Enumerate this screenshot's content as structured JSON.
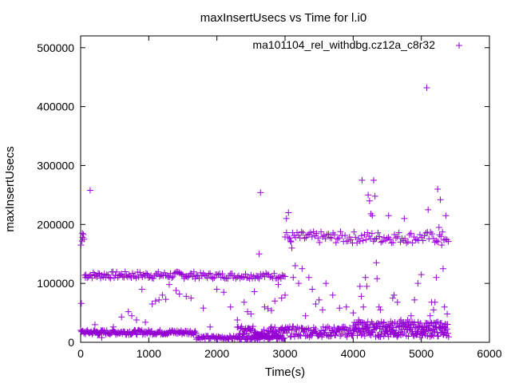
{
  "chart_data": {
    "type": "scatter",
    "title": "maxInsertUsecs vs Time for l.i0",
    "xlabel": "Time(s)",
    "ylabel": "maxInsertUsecs",
    "xlim": [
      0,
      6000
    ],
    "ylim": [
      0,
      520000
    ],
    "x_ticks": [
      0,
      1000,
      2000,
      3000,
      4000,
      5000,
      6000
    ],
    "y_ticks": [
      0,
      100000,
      200000,
      300000,
      400000,
      500000
    ],
    "grid": false,
    "legend_position": "top-right",
    "marker": "+",
    "color": "#9400d3",
    "series": [
      {
        "name": "ma101104_rel_withdbg.cz12a_c8r32",
        "points": [
          [
            5,
            165000
          ],
          [
            10,
            66000
          ],
          [
            20,
            172000
          ],
          [
            25,
            185000
          ],
          [
            30,
            178000
          ],
          [
            40,
            183000
          ],
          [
            50,
            175000
          ],
          [
            70,
            110000
          ],
          [
            140,
            258000
          ],
          [
            210,
            30000
          ],
          [
            250,
            12000
          ],
          [
            310,
            8000
          ],
          [
            480,
            26000
          ],
          [
            600,
            43000
          ],
          [
            700,
            52000
          ],
          [
            750,
            45000
          ],
          [
            820,
            38000
          ],
          [
            900,
            90000
          ],
          [
            950,
            34000
          ],
          [
            1050,
            65000
          ],
          [
            1100,
            70000
          ],
          [
            1150,
            72000
          ],
          [
            1200,
            80000
          ],
          [
            1250,
            73000
          ],
          [
            1300,
            98000
          ],
          [
            1400,
            88000
          ],
          [
            1450,
            82000
          ],
          [
            1550,
            78000
          ],
          [
            1620,
            75000
          ],
          [
            1800,
            58000
          ],
          [
            1900,
            26000
          ],
          [
            2000,
            90000
          ],
          [
            2100,
            85000
          ],
          [
            2200,
            60000
          ],
          [
            2300,
            38000
          ],
          [
            2400,
            68000
          ],
          [
            2450,
            52000
          ],
          [
            2500,
            48000
          ],
          [
            2550,
            86000
          ],
          [
            2600,
            110000
          ],
          [
            2620,
            150000
          ],
          [
            2640,
            254000
          ],
          [
            2700,
            60000
          ],
          [
            2750,
            57000
          ],
          [
            2800,
            54000
          ],
          [
            2850,
            70000
          ],
          [
            2900,
            98000
          ],
          [
            2950,
            75000
          ],
          [
            3000,
            80000
          ],
          [
            3020,
            210000
          ],
          [
            3050,
            220000
          ],
          [
            3080,
            172000
          ],
          [
            3100,
            160000
          ],
          [
            3120,
            110000
          ],
          [
            3150,
            130000
          ],
          [
            3200,
            100000
          ],
          [
            3250,
            125000
          ],
          [
            3300,
            45000
          ],
          [
            3350,
            110000
          ],
          [
            3400,
            90000
          ],
          [
            3450,
            65000
          ],
          [
            3500,
            72000
          ],
          [
            3550,
            55000
          ],
          [
            3600,
            100000
          ],
          [
            3700,
            80000
          ],
          [
            3800,
            58000
          ],
          [
            3900,
            60000
          ],
          [
            4000,
            50000
          ],
          [
            4080,
            38000
          ],
          [
            4100,
            95000
          ],
          [
            4120,
            78000
          ],
          [
            4130,
            275000
          ],
          [
            4150,
            60000
          ],
          [
            4180,
            110000
          ],
          [
            4200,
            95000
          ],
          [
            4220,
            250000
          ],
          [
            4240,
            240000
          ],
          [
            4260,
            218000
          ],
          [
            4280,
            215000
          ],
          [
            4300,
            275000
          ],
          [
            4320,
            248000
          ],
          [
            4340,
            135000
          ],
          [
            4350,
            108000
          ],
          [
            4380,
            60000
          ],
          [
            4400,
            55000
          ],
          [
            4450,
            33000
          ],
          [
            4500,
            25000
          ],
          [
            4520,
            215000
          ],
          [
            4550,
            35000
          ],
          [
            4580,
            75000
          ],
          [
            4600,
            80000
          ],
          [
            4650,
            68000
          ],
          [
            4700,
            38000
          ],
          [
            4750,
            210000
          ],
          [
            4800,
            38000
          ],
          [
            4850,
            45000
          ],
          [
            4900,
            72000
          ],
          [
            4950,
            100000
          ],
          [
            5000,
            115000
          ],
          [
            5020,
            22000
          ],
          [
            5050,
            15000
          ],
          [
            5080,
            432000
          ],
          [
            5100,
            225000
          ],
          [
            5130,
            45000
          ],
          [
            5150,
            68000
          ],
          [
            5180,
            55000
          ],
          [
            5200,
            68000
          ],
          [
            5220,
            110000
          ],
          [
            5240,
            260000
          ],
          [
            5260,
            195000
          ],
          [
            5280,
            242000
          ],
          [
            5300,
            165000
          ],
          [
            5320,
            125000
          ],
          [
            5340,
            60000
          ],
          [
            5360,
            215000
          ],
          [
            5380,
            48000
          ]
        ],
        "bands": [
          {
            "x": [
              60,
              1700
            ],
            "y_center": 114000,
            "y_jitter": 6000,
            "step": 18
          },
          {
            "x": [
              1700,
              3000
            ],
            "y_center": 113000,
            "y_jitter": 5000,
            "step": 20
          },
          {
            "x": [
              3000,
              5400
            ],
            "y_center": 178000,
            "y_jitter": 10000,
            "step": 22
          },
          {
            "x": [
              0,
              1700
            ],
            "y_center": 17000,
            "y_jitter": 4000,
            "step": 12
          },
          {
            "x": [
              1700,
              3000
            ],
            "y_center": 8000,
            "y_jitter": 3000,
            "step": 14
          },
          {
            "x": [
              2300,
              5400
            ],
            "y_center": 18000,
            "y_jitter": 9000,
            "step": 10
          },
          {
            "x": [
              4000,
              5400
            ],
            "y_center": 30000,
            "y_jitter": 5000,
            "step": 18
          }
        ]
      }
    ]
  }
}
